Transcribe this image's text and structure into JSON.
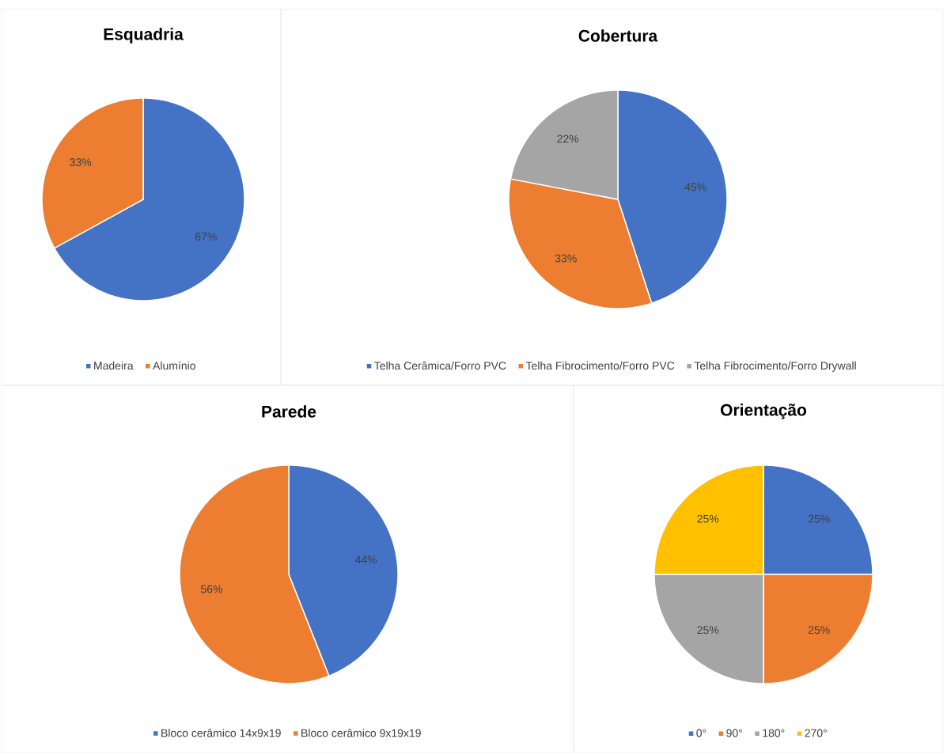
{
  "chart_data": [
    {
      "type": "pie",
      "title": "Esquadria",
      "categories": [
        "Madeira",
        "Alumínio"
      ],
      "values": [
        67,
        33
      ],
      "value_labels": [
        "67%",
        "33%"
      ],
      "colors": [
        "#4472c4",
        "#ed7d31"
      ],
      "legend": "bottom"
    },
    {
      "type": "pie",
      "title": "Cobertura",
      "categories": [
        "Telha Cerâmica/Forro PVC",
        "Telha Fibrocimento/Forro PVC",
        "Telha Fibrocimento/Forro Drywall"
      ],
      "values": [
        45,
        33,
        22
      ],
      "value_labels": [
        "45%",
        "33%",
        "22%"
      ],
      "colors": [
        "#4472c4",
        "#ed7d31",
        "#a5a5a5"
      ],
      "legend": "bottom"
    },
    {
      "type": "pie",
      "title": "Parede",
      "categories": [
        "Bloco cerâmico 14x9x19",
        "Bloco cerâmico 9x19x19"
      ],
      "values": [
        44,
        56
      ],
      "value_labels": [
        "44%",
        "56%"
      ],
      "colors": [
        "#4472c4",
        "#ed7d31"
      ],
      "legend": "bottom"
    },
    {
      "type": "pie",
      "title": "Orientação",
      "categories": [
        "0°",
        "90°",
        "180°",
        "270°"
      ],
      "values": [
        25,
        25,
        25,
        25
      ],
      "value_labels": [
        "25%",
        "25%",
        "25%",
        "25%"
      ],
      "colors": [
        "#4472c4",
        "#ed7d31",
        "#a5a5a5",
        "#ffc000"
      ],
      "legend": "bottom"
    }
  ]
}
